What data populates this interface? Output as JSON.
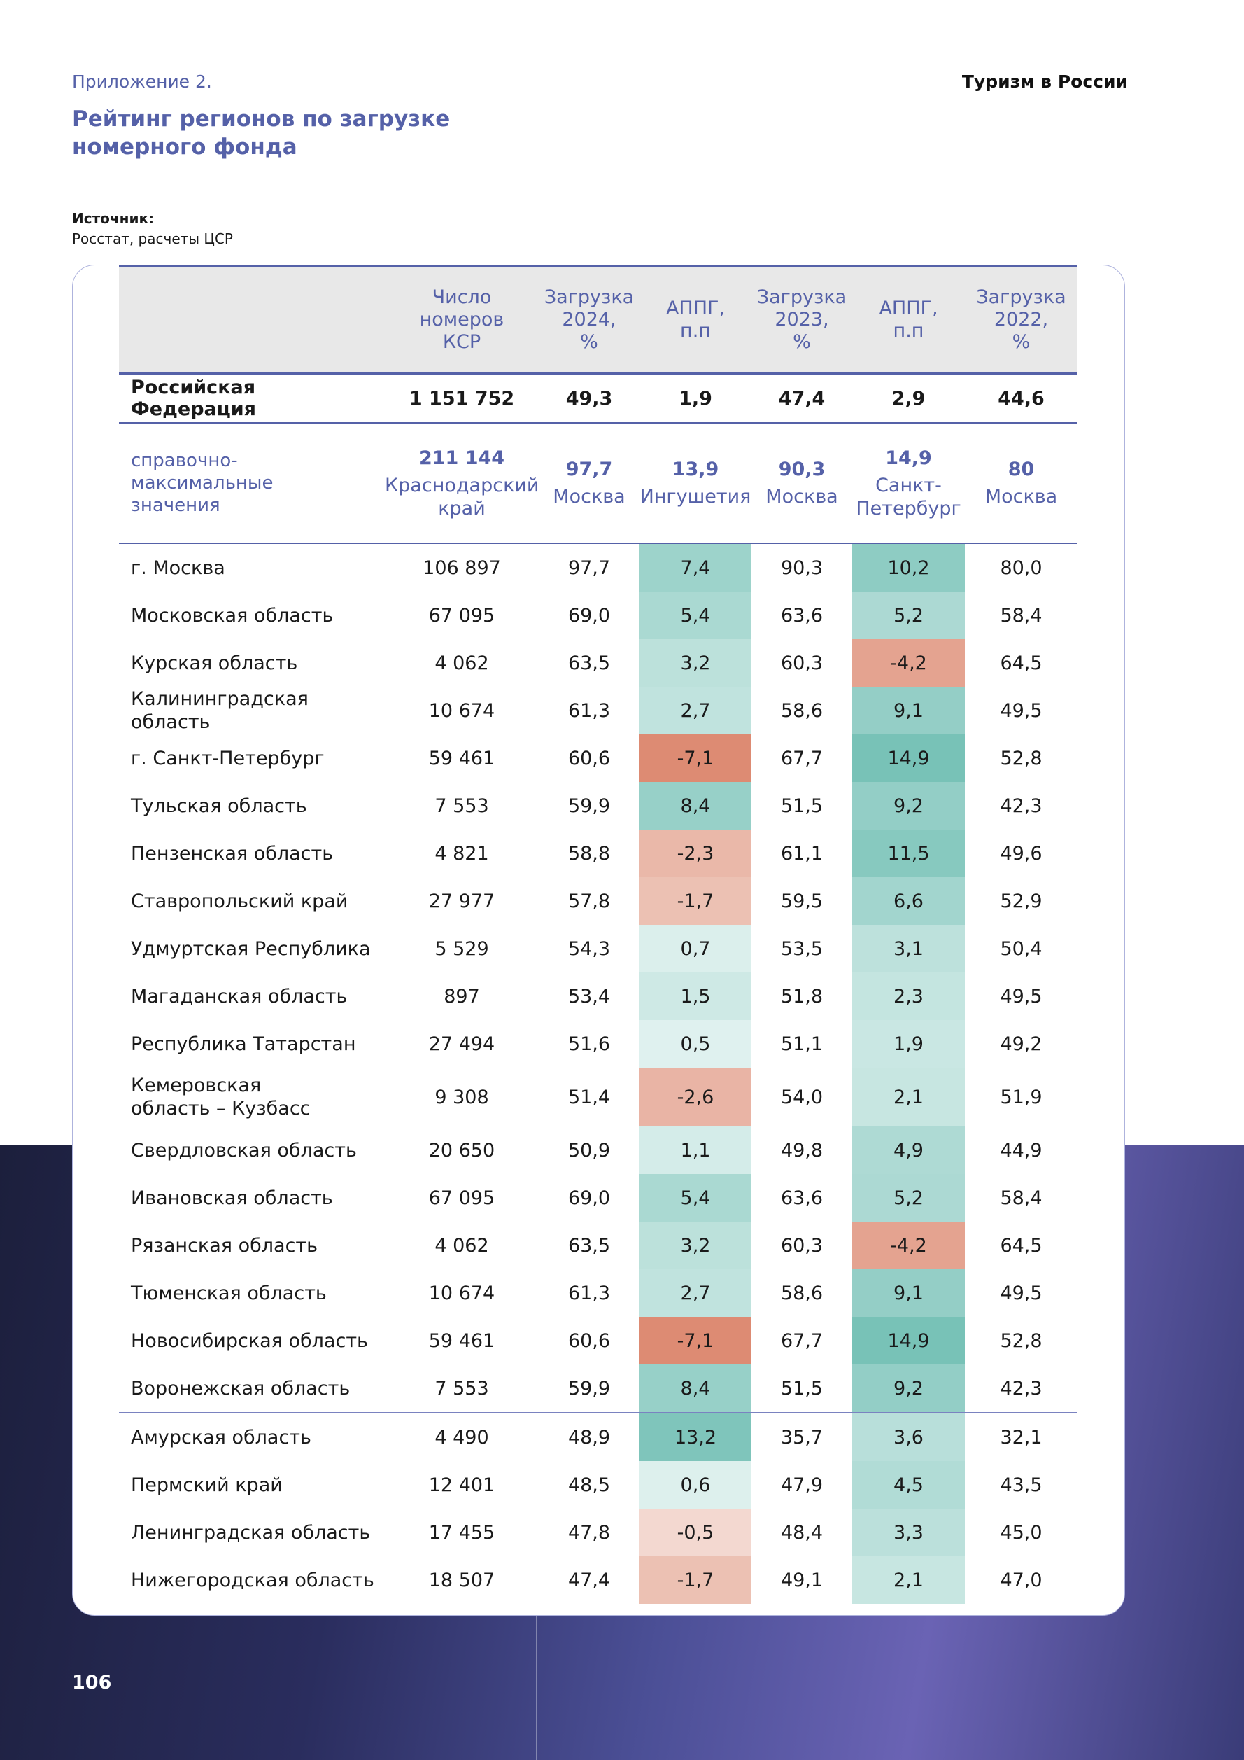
{
  "header": {
    "appendix": "Приложение 2.",
    "title": "Рейтинг регионов по загрузке\nномерного фонда",
    "brand": "Туризм в России"
  },
  "source": {
    "label": "Источник:",
    "text": "Росстат, расчеты ЦСР"
  },
  "table": {
    "columns": [
      "Число\nномеров\nКСР",
      "Загрузка\n2024,\n%",
      "АППГ,\nп.п",
      "Загрузка\n2023,\n%",
      "АППГ,\nп.п",
      "Загрузка\n2022,\n%"
    ],
    "total": [
      "Российская Федерация",
      "1 151 752",
      "49,3",
      "1,9",
      "47,4",
      "2,9",
      "44,6"
    ],
    "reference": {
      "label": "справочно-\nмаксимальные\nзначения",
      "cells": [
        {
          "value": "211 144",
          "region": "Краснодарский\nкрай"
        },
        {
          "value": "97,7",
          "region": "Москва"
        },
        {
          "value": "13,9",
          "region": "Ингушетия"
        },
        {
          "value": "90,3",
          "region": "Москва"
        },
        {
          "value": "14,9",
          "region": "Санкт-\nПетербург"
        },
        {
          "value": "80",
          "region": "Москва"
        }
      ]
    },
    "rows": [
      [
        "г. Москва",
        "106 897",
        "97,7",
        "7,4",
        "90,3",
        "10,2",
        "80,0"
      ],
      [
        "Московская область",
        "67 095",
        "69,0",
        "5,4",
        "63,6",
        "5,2",
        "58,4"
      ],
      [
        "Курская область",
        "4 062",
        "63,5",
        "3,2",
        "60,3",
        "-4,2",
        "64,5"
      ],
      [
        "Калининградская область",
        "10 674",
        "61,3",
        "2,7",
        "58,6",
        "9,1",
        "49,5"
      ],
      [
        "г. Санкт-Петербург",
        "59 461",
        "60,6",
        "-7,1",
        "67,7",
        "14,9",
        "52,8"
      ],
      [
        "Тульская область",
        "7 553",
        "59,9",
        "8,4",
        "51,5",
        "9,2",
        "42,3"
      ],
      [
        "Пензенская область",
        "4 821",
        "58,8",
        "-2,3",
        "61,1",
        "11,5",
        "49,6"
      ],
      [
        "Ставропольский край",
        "27 977",
        "57,8",
        "-1,7",
        "59,5",
        "6,6",
        "52,9"
      ],
      [
        "Удмуртская Республика",
        "5 529",
        "54,3",
        "0,7",
        "53,5",
        "3,1",
        "50,4"
      ],
      [
        "Магаданская область",
        "897",
        "53,4",
        "1,5",
        "51,8",
        "2,3",
        "49,5"
      ],
      [
        "Республика Татарстан",
        "27 494",
        "51,6",
        "0,5",
        "51,1",
        "1,9",
        "49,2"
      ],
      [
        "Кемеровская\nобласть – Кузбасс",
        "9 308",
        "51,4",
        "-2,6",
        "54,0",
        "2,1",
        "51,9"
      ],
      [
        "Свердловская область",
        "20 650",
        "50,9",
        "1,1",
        "49,8",
        "4,9",
        "44,9"
      ],
      [
        "Ивановская область",
        "67 095",
        "69,0",
        "5,4",
        "63,6",
        "5,2",
        "58,4"
      ],
      [
        "Рязанская область",
        "4 062",
        "63,5",
        "3,2",
        "60,3",
        "-4,2",
        "64,5"
      ],
      [
        "Тюменская область",
        "10 674",
        "61,3",
        "2,7",
        "58,6",
        "9,1",
        "49,5"
      ],
      [
        "Новосибирская область",
        "59 461",
        "60,6",
        "-7,1",
        "67,7",
        "14,9",
        "52,8"
      ],
      [
        "Воронежская область",
        "7 553",
        "59,9",
        "8,4",
        "51,5",
        "9,2",
        "42,3"
      ],
      [
        "Амурская область",
        "4 490",
        "48,9",
        "13,2",
        "35,7",
        "3,6",
        "32,1"
      ],
      [
        "Пермский край",
        "12 401",
        "48,5",
        "0,6",
        "47,9",
        "4,5",
        "43,5"
      ],
      [
        "Ленинградская область",
        "17 455",
        "47,8",
        "-0,5",
        "48,4",
        "3,3",
        "45,0"
      ],
      [
        "Нижегородская область",
        "18 507",
        "47,4",
        "-1,7",
        "49,1",
        "2,1",
        "47,0"
      ]
    ]
  },
  "page_number": "106"
}
